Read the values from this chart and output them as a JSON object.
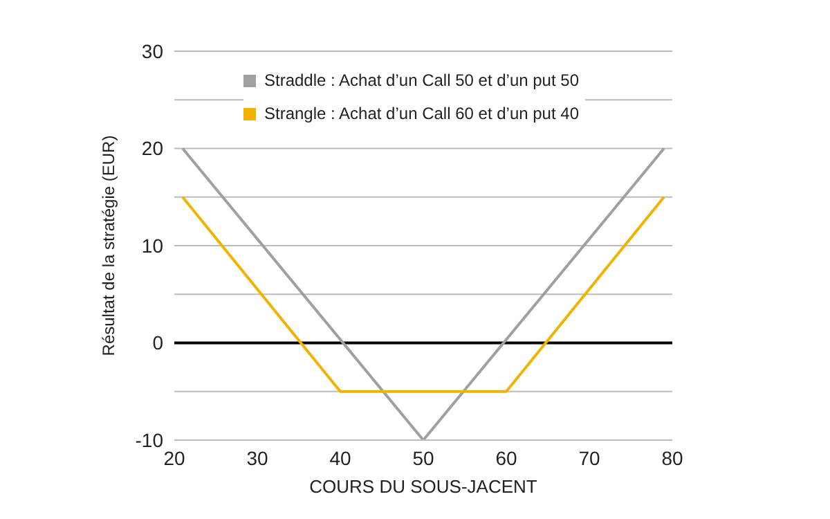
{
  "chart_data": {
    "type": "line",
    "xlabel": "COURS DU SOUS-JACENT",
    "ylabel": "Résultat de la stratégie (EUR)",
    "xlim": [
      20,
      80
    ],
    "xticks": [
      20,
      30,
      40,
      50,
      60,
      70,
      80
    ],
    "ylim": [
      -10,
      30
    ],
    "yticks": [
      -10,
      {
        "value": -5,
        "label": null
      },
      0,
      {
        "value": 5,
        "label": null
      },
      10,
      {
        "value": 15,
        "label": null
      },
      20,
      {
        "value": 25,
        "label": null
      },
      30
    ],
    "grid": "y",
    "legend": "top left",
    "marker": "none",
    "line_style": "solid",
    "series": [
      {
        "name": "Straddle : Achat d’un Call 50 et d’un put 50",
        "color": "#a0a0a0",
        "x": [
          21,
          50,
          79
        ],
        "values": [
          20,
          -10,
          20
        ]
      },
      {
        "name": "Strangle : Achat d’un Call 60 et d’un put 40",
        "color": "#f0b400",
        "x": [
          21,
          40,
          60,
          79
        ],
        "values": [
          15,
          -5,
          -5,
          15
        ]
      }
    ],
    "ref_lines": [
      {
        "axis": "y",
        "value": 0,
        "label": null,
        "color": "#000000"
      }
    ]
  }
}
